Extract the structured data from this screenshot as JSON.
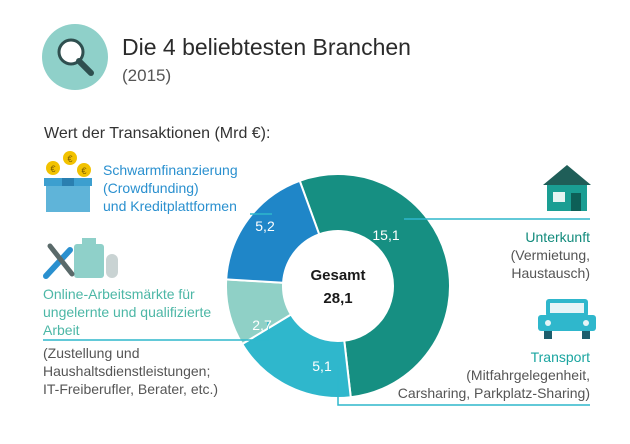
{
  "header": {
    "title": "Die 4 beliebtesten Branchen",
    "subtitle": "(2015)",
    "caption": "Wert der Transaktionen (Mrd €):"
  },
  "center": {
    "label": "Gesamt",
    "value": "28,1"
  },
  "colors": {
    "unterkunft": "#168f82",
    "transport": "#2fb7cc",
    "arbeit": "#8fd0c6",
    "schwarm": "#1f86c8",
    "icon_circle": "#8fd0c9",
    "leader": "#2fb7cc"
  },
  "segments": {
    "unterkunft": {
      "value_label": "15,1",
      "head_lines": [
        "Unterkunft"
      ],
      "sub_lines": [
        "(Vermietung,",
        "Haustausch)"
      ]
    },
    "transport": {
      "value_label": "5,1",
      "head_lines": [
        "Transport"
      ],
      "sub_lines": [
        "(Mitfahrgelegenheit,",
        "Carsharing, Parkplatz-Sharing)"
      ]
    },
    "arbeit": {
      "value_label": "2,7",
      "head_lines": [
        "Online-Arbeitsmärkte für",
        "ungelernte und qualifizierte",
        "Arbeit"
      ],
      "sub_lines": [
        "(Zustellung und",
        "Haushaltsdienstleistungen;",
        "IT-Freiberufler, Berater, etc.)"
      ]
    },
    "schwarm": {
      "value_label": "5,2",
      "head_lines": [
        "Schwarmfinanzierung",
        "(Crowdfunding)",
        "und Kreditplattformen"
      ],
      "sub_lines": []
    }
  },
  "icons": {
    "header": "magnifier-icon",
    "unterkunft": "house-icon",
    "transport": "car-icon",
    "arbeit": "tools-icon",
    "schwarm": "coins-box-icon",
    "coin_symbol": "€"
  },
  "chart_data": {
    "type": "pie",
    "variant": "donut",
    "title": "Die 4 beliebtesten Branchen",
    "subtitle": "(2015)",
    "caption": "Wert der Transaktionen (Mrd €):",
    "unit": "Mrd €",
    "total": 28.1,
    "categories": [
      "Unterkunft",
      "Transport",
      "Online-Arbeitsmärkte",
      "Schwarmfinanzierung"
    ],
    "values": [
      15.1,
      5.1,
      2.7,
      5.2
    ]
  }
}
